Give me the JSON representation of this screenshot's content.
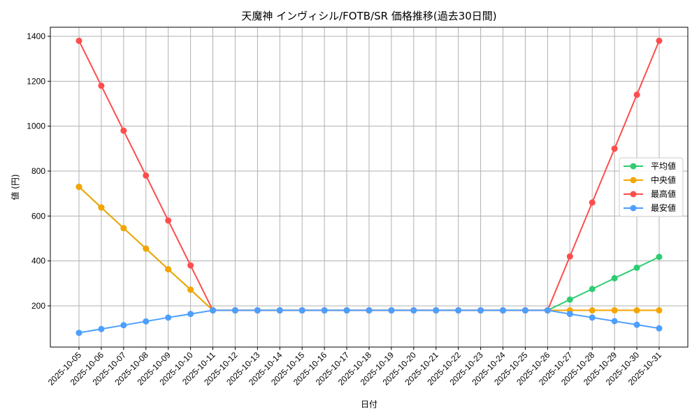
{
  "chart_data": {
    "type": "line",
    "title": "天魔神 インヴィシル/FOTB/SR 価格推移(過去30日間)",
    "xlabel": "日付",
    "ylabel": "値 (円)",
    "ylim": [
      40,
      1445
    ],
    "yticks": [
      200,
      400,
      600,
      800,
      1000,
      1200,
      1400
    ],
    "grid": true,
    "legend_position": "center right",
    "categories": [
      "2025-10-05",
      "2025-10-06",
      "2025-10-07",
      "2025-10-08",
      "2025-10-09",
      "2025-10-10",
      "2025-10-11",
      "2025-10-12",
      "2025-10-13",
      "2025-10-14",
      "2025-10-15",
      "2025-10-16",
      "2025-10-17",
      "2025-10-18",
      "2025-10-19",
      "2025-10-20",
      "2025-10-21",
      "2025-10-22",
      "2025-10-23",
      "2025-10-24",
      "2025-10-25",
      "2025-10-26",
      "2025-10-27",
      "2025-10-28",
      "2025-10-29",
      "2025-10-30",
      "2025-10-31"
    ],
    "series": [
      {
        "name": "平均値",
        "color": "#2ecc71",
        "values": [
          730,
          638,
          546,
          455,
          363,
          272,
          180,
          180,
          180,
          180,
          180,
          180,
          180,
          180,
          180,
          180,
          180,
          180,
          180,
          180,
          180,
          180,
          228,
          275,
          323,
          370,
          418
        ]
      },
      {
        "name": "中央値",
        "color": "#f5a500",
        "values": [
          730,
          638,
          546,
          455,
          363,
          272,
          180,
          180,
          180,
          180,
          180,
          180,
          180,
          180,
          180,
          180,
          180,
          180,
          180,
          180,
          180,
          180,
          180,
          180,
          180,
          180,
          180
        ]
      },
      {
        "name": "最高値",
        "color": "#ff4d4d",
        "values": [
          1380,
          1180,
          980,
          780,
          580,
          380,
          180,
          180,
          180,
          180,
          180,
          180,
          180,
          180,
          180,
          180,
          180,
          180,
          180,
          180,
          180,
          180,
          420,
          660,
          900,
          1140,
          1380
        ]
      },
      {
        "name": "最安値",
        "color": "#4d9fff",
        "values": [
          80,
          97,
          114,
          131,
          148,
          164,
          180,
          180,
          180,
          180,
          180,
          180,
          180,
          180,
          180,
          180,
          180,
          180,
          180,
          180,
          180,
          180,
          164,
          148,
          132,
          116,
          100
        ]
      }
    ]
  }
}
